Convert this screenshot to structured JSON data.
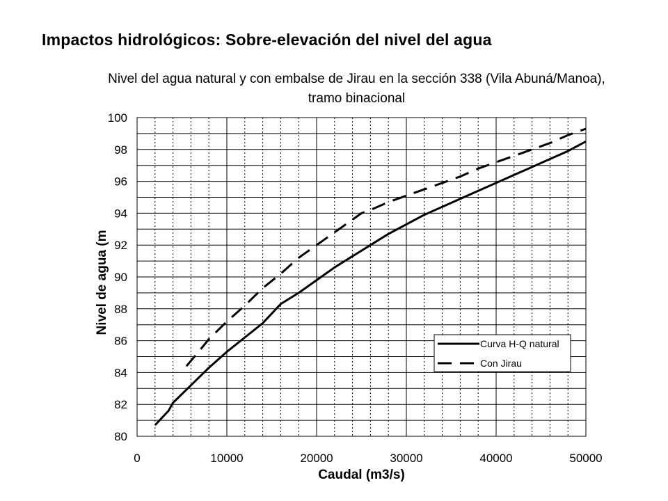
{
  "slide": {
    "title": "Impactos hidrológicos: Sobre-elevación del nivel del agua"
  },
  "chart_data": {
    "type": "line",
    "title": "Nivel del agua natural y con embalse de Jirau en la sección 338 (Vila Abuná/Manoa), tramo binacional",
    "xlabel": "Caudal (m3/s)",
    "ylabel": "Nivel de agua (m",
    "xlim": [
      0,
      50000
    ],
    "ylim": [
      80,
      100
    ],
    "xticks": [
      0,
      10000,
      20000,
      30000,
      40000,
      50000
    ],
    "yticks": [
      80,
      82,
      84,
      86,
      88,
      90,
      92,
      94,
      96,
      98,
      100
    ],
    "grid": true,
    "legend_position": "bottom-right",
    "series": [
      {
        "name": "Curva H-Q natural",
        "style": "solid",
        "color": "#000000",
        "points": [
          [
            2000,
            80.7
          ],
          [
            3500,
            81.6
          ],
          [
            4000,
            82.1
          ],
          [
            6000,
            83.2
          ],
          [
            8000,
            84.3
          ],
          [
            10000,
            85.3
          ],
          [
            12000,
            86.2
          ],
          [
            14000,
            87.1
          ],
          [
            16000,
            88.3
          ],
          [
            18000,
            89.0
          ],
          [
            20000,
            89.8
          ],
          [
            22000,
            90.6
          ],
          [
            24000,
            91.3
          ],
          [
            26000,
            92.0
          ],
          [
            28000,
            92.7
          ],
          [
            30000,
            93.3
          ],
          [
            32000,
            93.9
          ],
          [
            34000,
            94.4
          ],
          [
            36000,
            94.9
          ],
          [
            38000,
            95.4
          ],
          [
            40000,
            95.9
          ],
          [
            42000,
            96.4
          ],
          [
            44000,
            96.9
          ],
          [
            46000,
            97.4
          ],
          [
            48000,
            97.9
          ],
          [
            50000,
            98.5
          ]
        ]
      },
      {
        "name": "Con Jirau",
        "style": "dashed",
        "color": "#000000",
        "points": [
          [
            5500,
            84.4
          ],
          [
            7000,
            85.4
          ],
          [
            8000,
            86.1
          ],
          [
            10000,
            87.2
          ],
          [
            12000,
            88.2
          ],
          [
            14000,
            89.3
          ],
          [
            16000,
            90.2
          ],
          [
            18000,
            91.2
          ],
          [
            20000,
            92.0
          ],
          [
            22000,
            92.8
          ],
          [
            24000,
            93.6
          ],
          [
            25000,
            94.0
          ],
          [
            26000,
            94.2
          ],
          [
            28000,
            94.7
          ],
          [
            30000,
            95.1
          ],
          [
            32000,
            95.5
          ],
          [
            34000,
            95.9
          ],
          [
            36000,
            96.3
          ],
          [
            38000,
            96.8
          ],
          [
            40000,
            97.2
          ],
          [
            42000,
            97.6
          ],
          [
            44000,
            98.0
          ],
          [
            46000,
            98.4
          ],
          [
            48000,
            98.9
          ],
          [
            50000,
            99.3
          ]
        ]
      }
    ]
  }
}
